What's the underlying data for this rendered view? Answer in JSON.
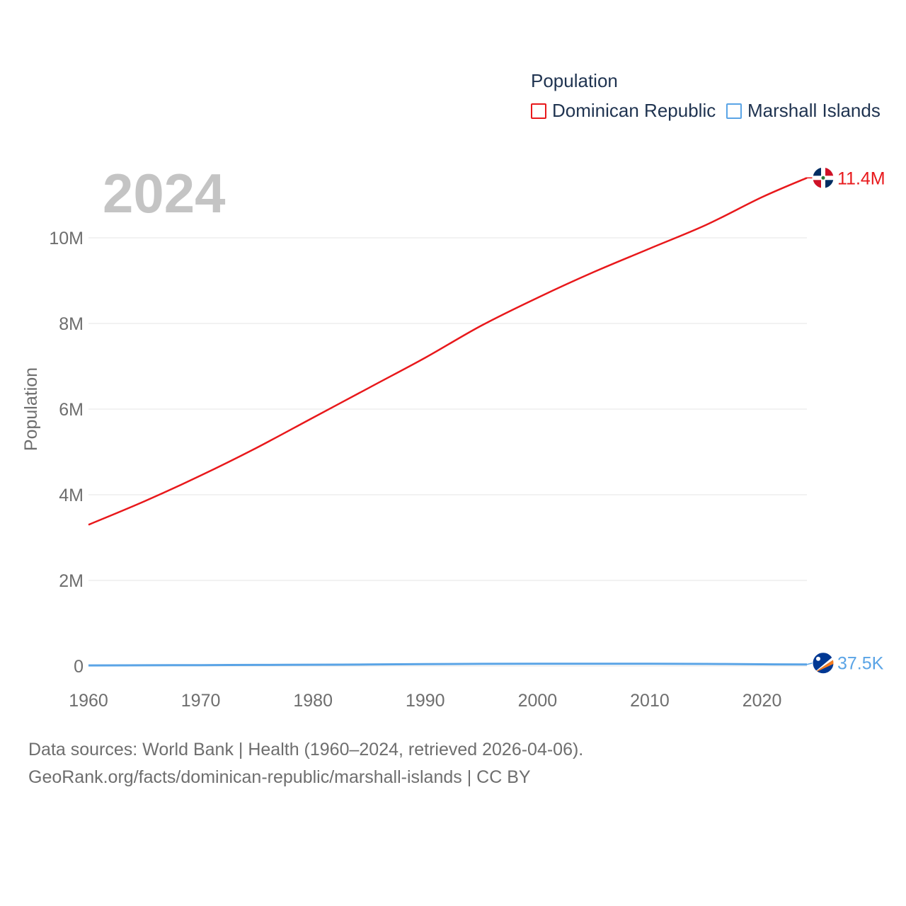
{
  "legend": {
    "title": "Population",
    "items": [
      {
        "label": "Dominican Republic",
        "color": "#e8181b"
      },
      {
        "label": "Marshall Islands",
        "color": "#5aa4e6"
      }
    ]
  },
  "year_display": "2024",
  "source": {
    "line1": "Data sources: World Bank | Health (1960–2024, retrieved 2026-04-06).",
    "line2": "GeoRank.org/facts/dominican-republic/marshall-islands | CC BY"
  },
  "chart_data": {
    "type": "line",
    "title": "",
    "xlabel": "",
    "ylabel": "Population",
    "xlim": [
      1960,
      2024
    ],
    "ylim": [
      0,
      11500000
    ],
    "x_ticks": [
      1960,
      1970,
      1980,
      1990,
      2000,
      2010,
      2020
    ],
    "x_tick_labels": [
      "1960",
      "1970",
      "1980",
      "1990",
      "2000",
      "2010",
      "2020"
    ],
    "y_ticks": [
      0,
      2000000,
      4000000,
      6000000,
      8000000,
      10000000
    ],
    "y_tick_labels": [
      "0",
      "2M",
      "4M",
      "6M",
      "8M",
      "10M"
    ],
    "grid": true,
    "x": [
      1960,
      1965,
      1970,
      1975,
      1980,
      1985,
      1990,
      1995,
      2000,
      2005,
      2010,
      2015,
      2020,
      2024
    ],
    "series": [
      {
        "name": "Dominican Republic",
        "color": "#e8181b",
        "values": [
          3300000,
          3850000,
          4450000,
          5100000,
          5800000,
          6500000,
          7200000,
          7950000,
          8600000,
          9200000,
          9750000,
          10300000,
          10950000,
          11400000
        ],
        "end_label": "11.4M",
        "flag": "dominican-republic-flag-icon"
      },
      {
        "name": "Marshall Islands",
        "color": "#5aa4e6",
        "values": [
          15000,
          18000,
          22000,
          26000,
          31000,
          37000,
          47000,
          51000,
          53000,
          55000,
          55000,
          50000,
          42000,
          37500
        ],
        "end_label": "37.5K",
        "flag": "marshall-islands-flag-icon"
      }
    ]
  }
}
